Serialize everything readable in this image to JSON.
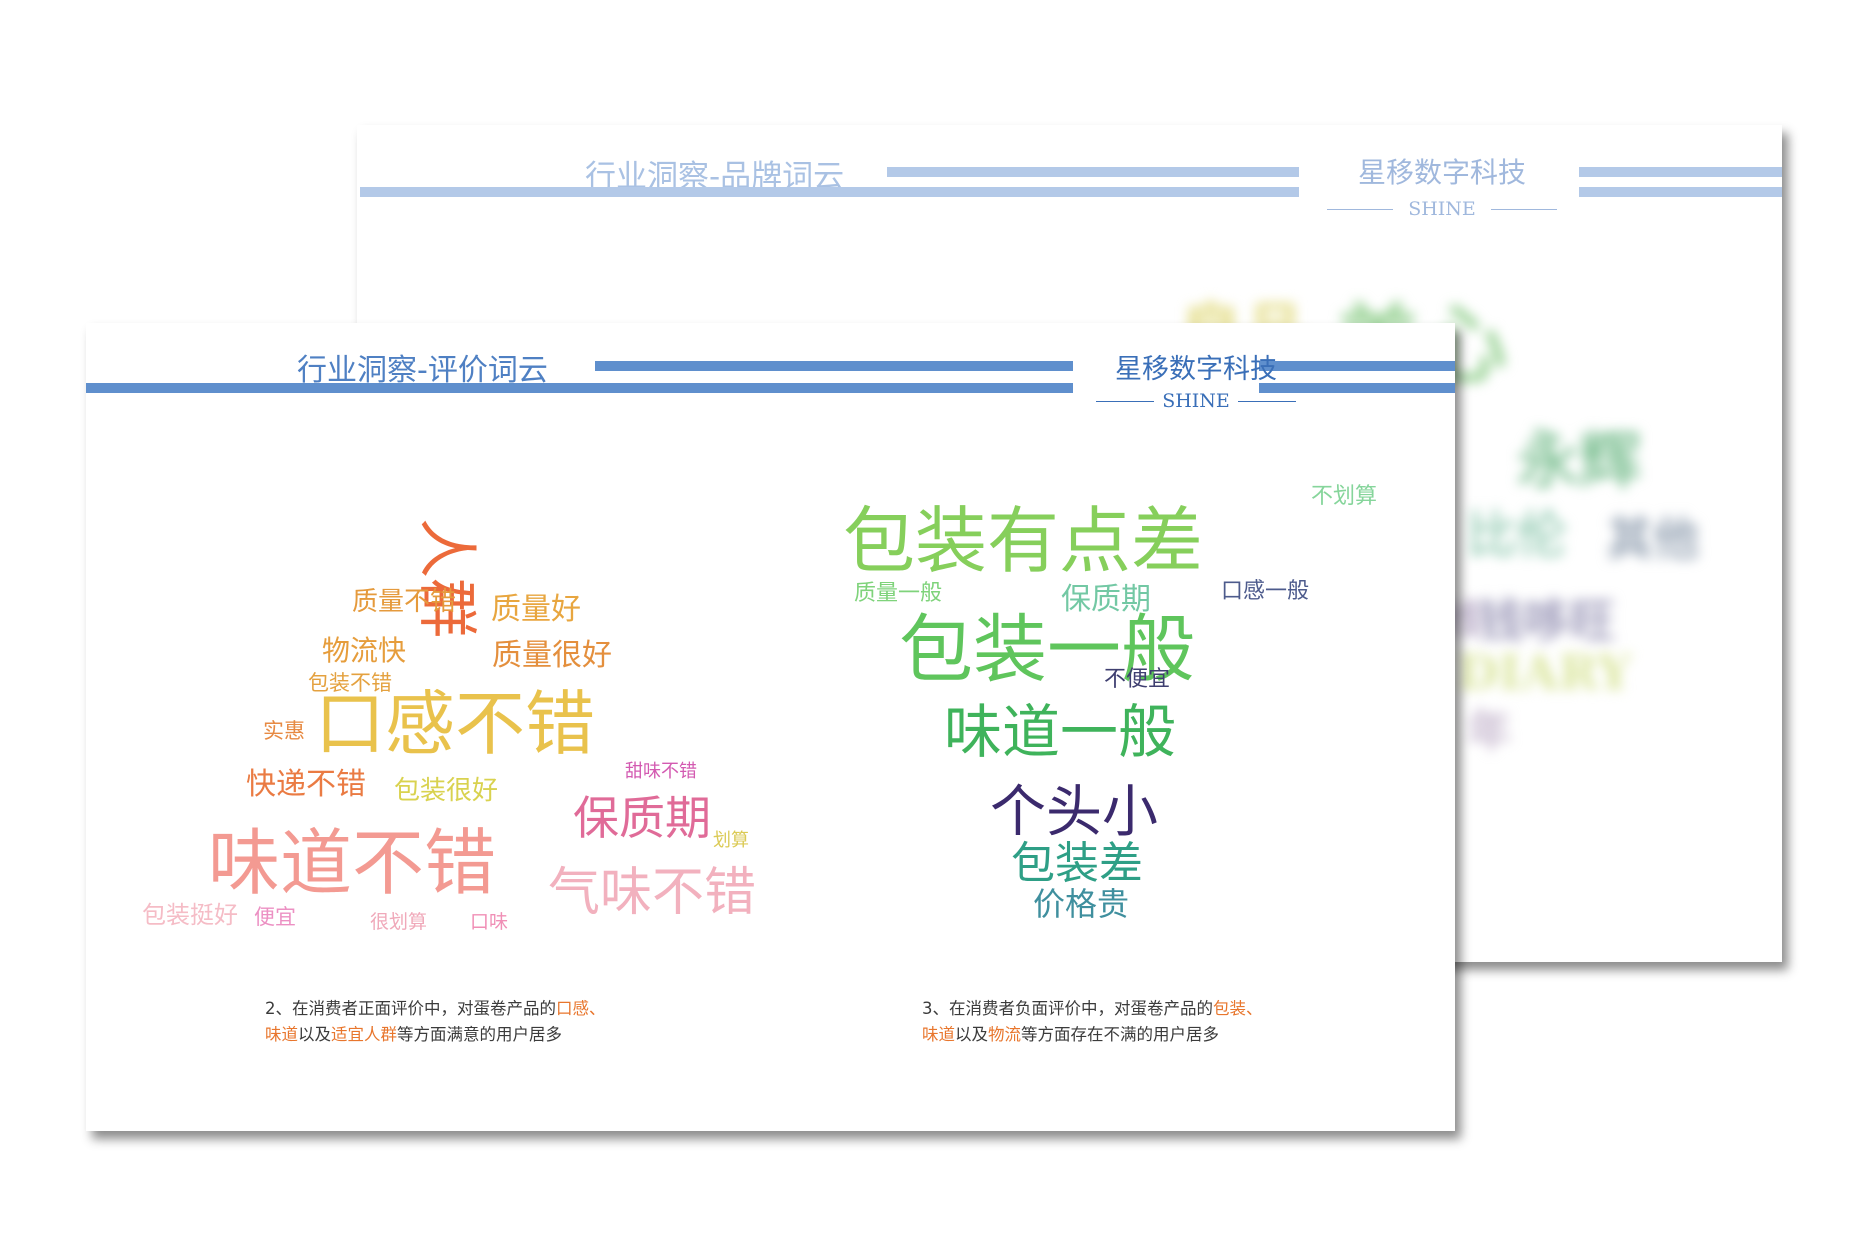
{
  "back_slide": {
    "title": "行业洞察-品牌词云",
    "brand_name": "星移数字科技",
    "brand_sub": "SHINE",
    "blurred_words": [
      {
        "text": "良品",
        "color": "#e3dc86"
      },
      {
        "text": "美心",
        "color": "#9bd397"
      },
      {
        "text": "永辉",
        "color": "#86c49a"
      },
      {
        "text": "比伦",
        "color": "#9ccfb9"
      },
      {
        "text": "其他",
        "color": "#9aa7b7"
      },
      {
        "text": "钱哆旺",
        "color": "#a29fbd"
      },
      {
        "text": "DIARY",
        "color": "#dbe6a0"
      },
      {
        "text": "年",
        "color": "#c7b9cf"
      },
      {
        "text": "线",
        "color": "#b6a9c6"
      }
    ]
  },
  "front_slide": {
    "title": "行业洞察-评价词云",
    "brand_name": "星移数字科技",
    "brand_sub": "SHINE",
    "positive_cloud": [
      {
        "text": "人群",
        "color": "#ec6a3a"
      },
      {
        "text": "质量不错",
        "color": "#e59a3c"
      },
      {
        "text": "质量好",
        "color": "#e8a63f"
      },
      {
        "text": "物流快",
        "color": "#e69d3c"
      },
      {
        "text": "质量很好",
        "color": "#e48f3d"
      },
      {
        "text": "包装不错",
        "color": "#e4a13f"
      },
      {
        "text": "实惠",
        "color": "#e78a43"
      },
      {
        "text": "口感不错",
        "color": "#e9c24c"
      },
      {
        "text": "甜味不错",
        "color": "#d35ab1"
      },
      {
        "text": "快递不错",
        "color": "#ea7b43"
      },
      {
        "text": "包装很好",
        "color": "#d9d24f"
      },
      {
        "text": "保质期",
        "color": "#e06b98"
      },
      {
        "text": "划算",
        "color": "#dbca55"
      },
      {
        "text": "味道不错",
        "color": "#f39a92"
      },
      {
        "text": "气味不错",
        "color": "#f2b1be"
      },
      {
        "text": "包装挺好",
        "color": "#f5bcc6"
      },
      {
        "text": "便宜",
        "color": "#ec90c3"
      },
      {
        "text": "很划算",
        "color": "#f0a9ba"
      },
      {
        "text": "口味",
        "color": "#f08fb6"
      }
    ],
    "negative_cloud": [
      {
        "text": "不划算",
        "color": "#86d59b"
      },
      {
        "text": "包装有点差",
        "color": "#86cf5b"
      },
      {
        "text": "质量一般",
        "color": "#7fd37b"
      },
      {
        "text": "保质期",
        "color": "#73c8a4"
      },
      {
        "text": "口感一般",
        "color": "#4d5b8c"
      },
      {
        "text": "包装一般",
        "color": "#5fc55c"
      },
      {
        "text": "不便宜",
        "color": "#3f3f70"
      },
      {
        "text": "味道一般",
        "color": "#3fb35b"
      },
      {
        "text": "个头小",
        "color": "#3b2a6d"
      },
      {
        "text": "包装差",
        "color": "#2e9f86"
      },
      {
        "text": "价格贵",
        "color": "#3f8f9e"
      }
    ],
    "caption_positive": {
      "part1": "2、在消费者正面评价中，对蛋卷产品的",
      "hl1": "口感、",
      "hl2": "味道",
      "part2": "以及",
      "hl3": "适宜人群",
      "part3": "等方面满意的用户居多"
    },
    "caption_negative": {
      "part1": "3、在消费者负面评价中，对蛋卷产品的",
      "hl1": "包装、",
      "hl2": "味道",
      "part2": "以及",
      "hl3": "物流",
      "part3": "等方面存在不满的用户居多"
    }
  }
}
